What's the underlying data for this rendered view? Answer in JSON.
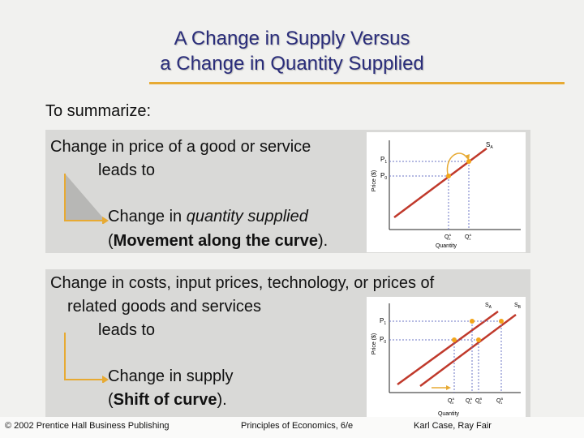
{
  "title": {
    "line1": "A Change in Supply Versus",
    "line2": "a Change in Quantity Supplied"
  },
  "summary_label": "To summarize:",
  "box1": {
    "line1": "Change in price of a good or service",
    "line2": "leads to",
    "line3_prefix": "Change in ",
    "line3_italic": "quantity supplied",
    "line4_open": "(",
    "line4_bold": "Movement along the curve",
    "line4_close": ")."
  },
  "box2": {
    "line1": "Change in costs, input prices, technology, or prices of",
    "line2": "related goods and services",
    "line3": "leads to",
    "line4": "Change in supply",
    "line5_open": "(",
    "line5_bold": "Shift of curve",
    "line5_close": ")."
  },
  "graph1": {
    "y_axis_label": "Price ($)",
    "x_axis_label": "Quantity",
    "curve_label": "S",
    "curve_sub": "A",
    "p_high": "P",
    "p_high_sub": "1",
    "p_low": "P",
    "p_low_sub": "0",
    "q_low": "Q",
    "q_low_sup": "A",
    "q_low_sub": "0",
    "q_high": "Q",
    "q_high_sup": "A",
    "q_high_sub": "1"
  },
  "graph2": {
    "y_axis_label": "Price ($)",
    "x_axis_label": "Quantity",
    "curve_a_label": "S",
    "curve_a_sub": "A",
    "curve_b_label": "S",
    "curve_b_sub": "B",
    "p_high": "P",
    "p_high_sub": "1",
    "p_low": "P",
    "p_low_sub": "0",
    "q1": "Q",
    "q1_sup": "A",
    "q1_sub": "0",
    "q2": "Q",
    "q2_sup": "A",
    "q2_sub": "1",
    "q3": "Q",
    "q3_sup": "B",
    "q3_sub": "0",
    "q4": "Q",
    "q4_sup": "B",
    "q4_sub": "1"
  },
  "footer": {
    "copyright": "© 2002 Prentice Hall Business Publishing",
    "book": "Principles of Economics, 6/e",
    "authors": "Karl Case, Ray Fair"
  },
  "colors": {
    "title": "#2a2d7a",
    "rule": "#e7aa33",
    "curve": "#c0392b",
    "point": "#f2a51a",
    "dash": "#6b74c4",
    "arrow": "#e7aa33"
  }
}
